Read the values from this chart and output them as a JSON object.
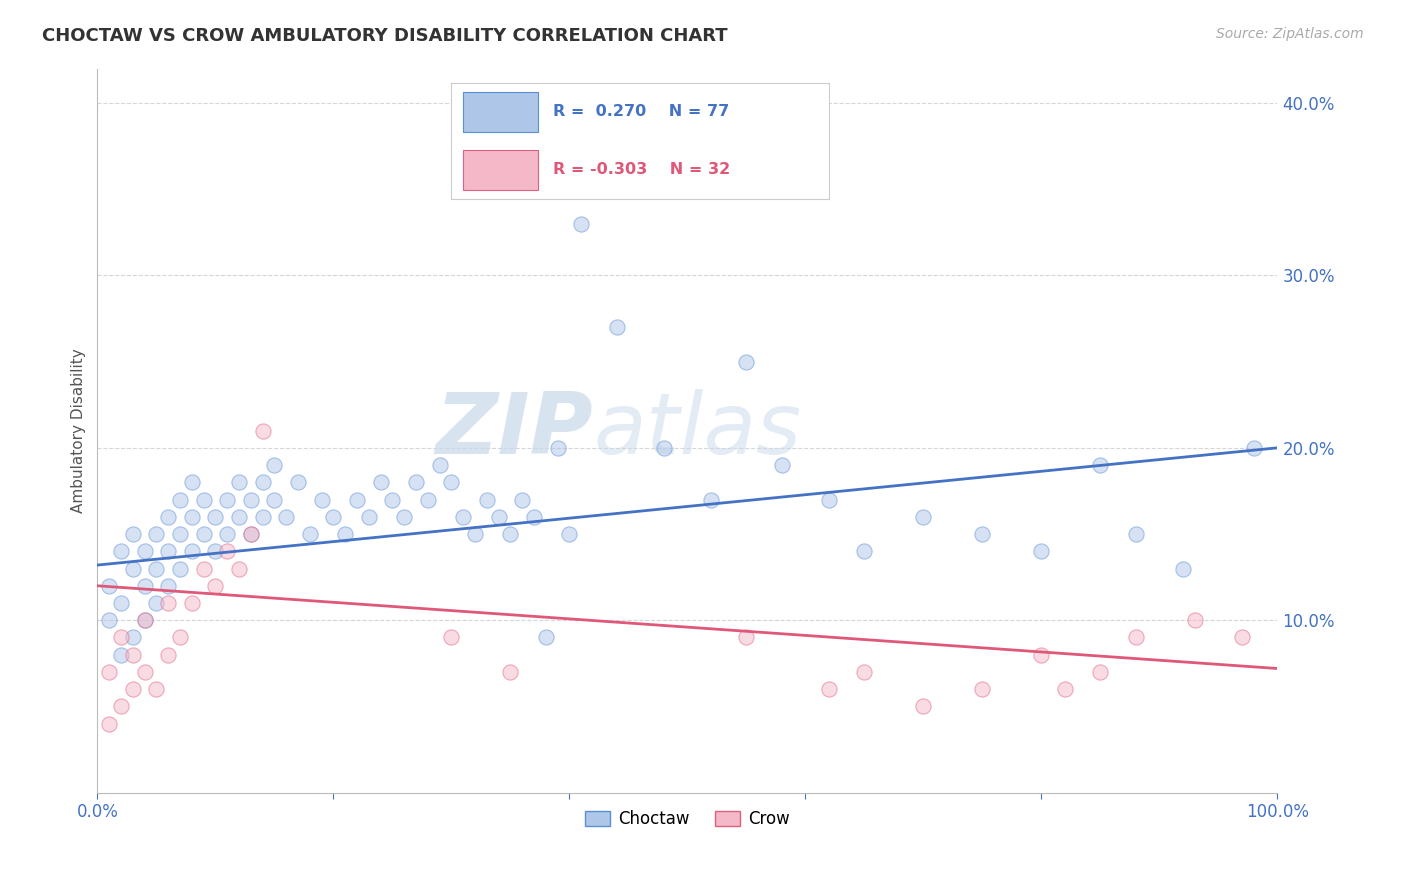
{
  "title": "CHOCTAW VS CROW AMBULATORY DISABILITY CORRELATION CHART",
  "source": "Source: ZipAtlas.com",
  "ylabel": "Ambulatory Disability",
  "xlim": [
    0,
    1.0
  ],
  "ylim": [
    0,
    0.42
  ],
  "xticks": [
    0.0,
    0.2,
    0.4,
    0.6,
    0.8,
    1.0
  ],
  "yticks": [
    0.1,
    0.2,
    0.3,
    0.4
  ],
  "xtick_labels": [
    "0.0%",
    "",
    "",
    "",
    "",
    "100.0%"
  ],
  "ytick_labels": [
    "10.0%",
    "20.0%",
    "30.0%",
    "40.0%"
  ],
  "choctaw_color": "#aec6e8",
  "crow_color": "#f5b8c8",
  "choctaw_edge_color": "#5b8fd4",
  "crow_edge_color": "#e06080",
  "choctaw_line_color": "#4472c4",
  "crow_line_color": "#e05878",
  "legend_label_choctaw": "Choctaw",
  "legend_label_crow": "Crow",
  "watermark_zip": "ZIP",
  "watermark_atlas": "atlas",
  "background_color": "#ffffff",
  "tick_color": "#4472c4",
  "grid_color": "#cccccc",
  "choctaw_x": [
    0.01,
    0.01,
    0.02,
    0.02,
    0.02,
    0.03,
    0.03,
    0.03,
    0.04,
    0.04,
    0.04,
    0.05,
    0.05,
    0.05,
    0.06,
    0.06,
    0.06,
    0.07,
    0.07,
    0.07,
    0.08,
    0.08,
    0.08,
    0.09,
    0.09,
    0.1,
    0.1,
    0.11,
    0.11,
    0.12,
    0.12,
    0.13,
    0.13,
    0.14,
    0.14,
    0.15,
    0.15,
    0.16,
    0.17,
    0.18,
    0.19,
    0.2,
    0.21,
    0.22,
    0.23,
    0.24,
    0.25,
    0.26,
    0.27,
    0.28,
    0.29,
    0.3,
    0.31,
    0.32,
    0.33,
    0.34,
    0.35,
    0.36,
    0.37,
    0.38,
    0.39,
    0.4,
    0.41,
    0.44,
    0.48,
    0.52,
    0.55,
    0.58,
    0.62,
    0.65,
    0.7,
    0.75,
    0.8,
    0.85,
    0.88,
    0.92,
    0.98
  ],
  "choctaw_y": [
    0.1,
    0.12,
    0.08,
    0.11,
    0.14,
    0.09,
    0.13,
    0.15,
    0.1,
    0.12,
    0.14,
    0.11,
    0.13,
    0.15,
    0.12,
    0.14,
    0.16,
    0.13,
    0.15,
    0.17,
    0.14,
    0.16,
    0.18,
    0.15,
    0.17,
    0.14,
    0.16,
    0.15,
    0.17,
    0.16,
    0.18,
    0.15,
    0.17,
    0.16,
    0.18,
    0.17,
    0.19,
    0.16,
    0.18,
    0.15,
    0.17,
    0.16,
    0.15,
    0.17,
    0.16,
    0.18,
    0.17,
    0.16,
    0.18,
    0.17,
    0.19,
    0.18,
    0.16,
    0.15,
    0.17,
    0.16,
    0.15,
    0.17,
    0.16,
    0.09,
    0.2,
    0.15,
    0.33,
    0.27,
    0.2,
    0.17,
    0.25,
    0.19,
    0.17,
    0.14,
    0.16,
    0.15,
    0.14,
    0.19,
    0.15,
    0.13,
    0.2
  ],
  "crow_x": [
    0.01,
    0.01,
    0.02,
    0.02,
    0.03,
    0.03,
    0.04,
    0.04,
    0.05,
    0.06,
    0.06,
    0.07,
    0.08,
    0.09,
    0.1,
    0.11,
    0.12,
    0.13,
    0.14,
    0.3,
    0.35,
    0.55,
    0.62,
    0.65,
    0.7,
    0.75,
    0.8,
    0.82,
    0.85,
    0.88,
    0.93,
    0.97
  ],
  "crow_y": [
    0.04,
    0.07,
    0.05,
    0.09,
    0.06,
    0.08,
    0.07,
    0.1,
    0.06,
    0.08,
    0.11,
    0.09,
    0.11,
    0.13,
    0.12,
    0.14,
    0.13,
    0.15,
    0.21,
    0.09,
    0.07,
    0.09,
    0.06,
    0.07,
    0.05,
    0.06,
    0.08,
    0.06,
    0.07,
    0.09,
    0.1,
    0.09
  ],
  "blue_line_x0": 0.0,
  "blue_line_y0": 0.132,
  "blue_line_x1": 1.0,
  "blue_line_y1": 0.2,
  "pink_line_x0": 0.0,
  "pink_line_y0": 0.12,
  "pink_line_x1": 1.0,
  "pink_line_y1": 0.072
}
